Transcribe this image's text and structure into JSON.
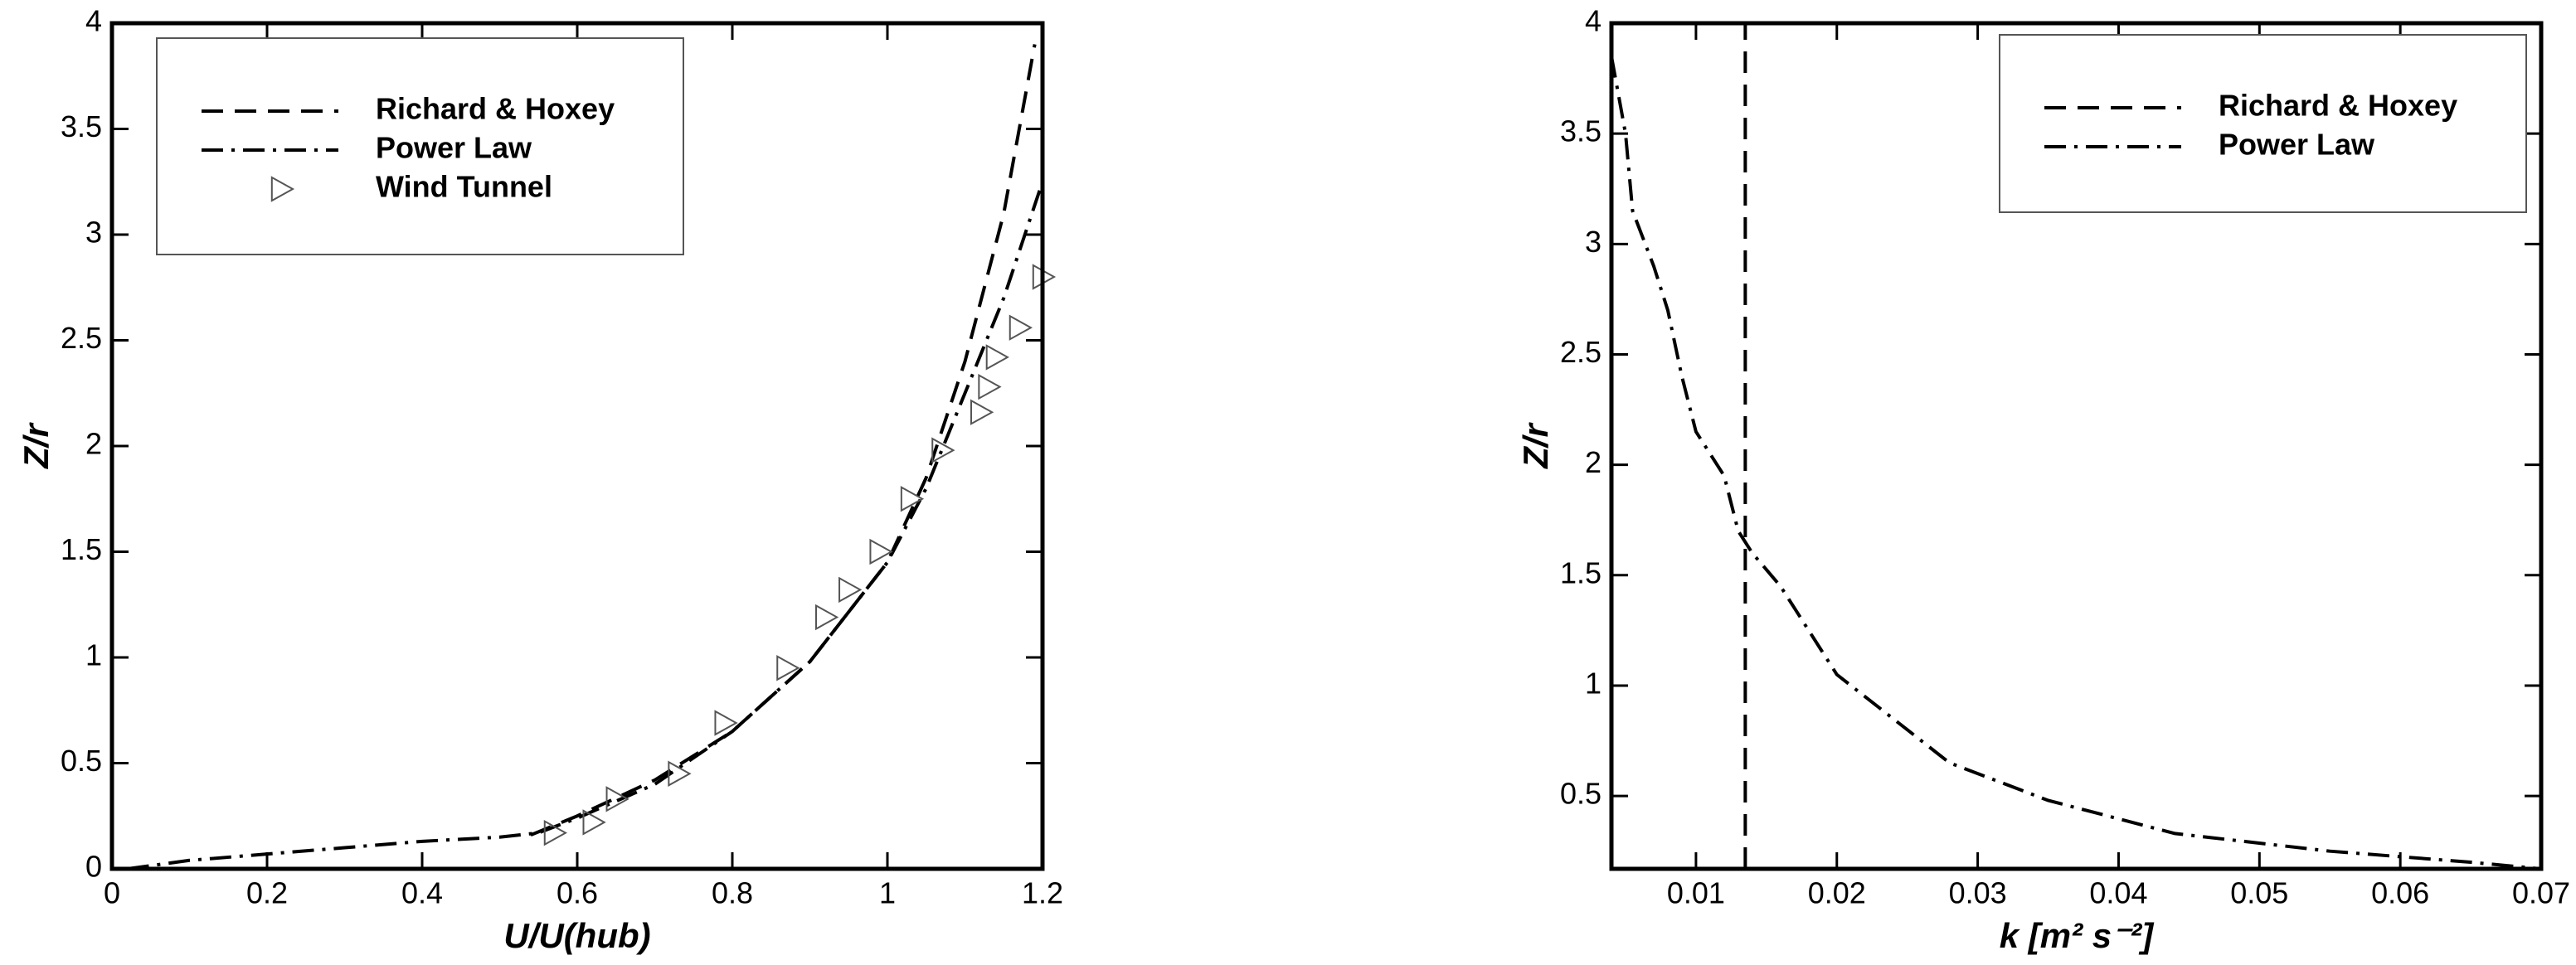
{
  "chart_data": [
    {
      "type": "line",
      "xlabel": "U/U(hub)",
      "ylabel": "Z/r",
      "xlim": [
        0,
        1.2
      ],
      "ylim": [
        0,
        4
      ],
      "xticks": [
        0,
        0.2,
        0.4,
        0.6,
        0.8,
        1,
        1.2
      ],
      "yticks": [
        0,
        0.5,
        1,
        1.5,
        2,
        2.5,
        3,
        3.5,
        4
      ],
      "legend": "upper left",
      "series": [
        {
          "name": "Richard & Hoxey",
          "style": "dashed",
          "color": "#000000",
          "x": [
            0.54,
            0.6,
            0.7,
            0.8,
            0.9,
            1.0,
            1.05,
            1.1,
            1.15,
            1.19
          ],
          "values": [
            0.16,
            0.25,
            0.42,
            0.65,
            0.98,
            1.45,
            1.85,
            2.4,
            3.1,
            3.9
          ]
        },
        {
          "name": "Power Law",
          "style": "dashdot",
          "color": "#000000",
          "x": [
            0.02,
            0.1,
            0.2,
            0.3,
            0.4,
            0.5,
            0.55,
            0.6,
            0.7,
            0.8,
            0.9,
            1.0,
            1.05,
            1.1,
            1.15,
            1.2
          ],
          "values": [
            0,
            0.04,
            0.07,
            0.1,
            0.13,
            0.15,
            0.17,
            0.24,
            0.4,
            0.65,
            0.98,
            1.45,
            1.8,
            2.25,
            2.7,
            3.25
          ]
        },
        {
          "name": "Wind Tunnel",
          "style": "markers",
          "color": "#555555",
          "x": [
            0.57,
            0.62,
            0.65,
            0.73,
            0.79,
            0.87,
            0.92,
            0.95,
            0.99,
            1.03,
            1.07,
            1.12,
            1.13,
            1.14,
            1.17,
            1.2
          ],
          "values": [
            0.17,
            0.22,
            0.33,
            0.45,
            0.69,
            0.95,
            1.19,
            1.32,
            1.5,
            1.75,
            1.98,
            2.16,
            2.28,
            2.42,
            2.56,
            2.8
          ]
        }
      ]
    },
    {
      "type": "line",
      "xlabel": "k [m² s⁻²]",
      "ylabel": "Z/r",
      "xlim": [
        0.004,
        0.07
      ],
      "ylim": [
        0.17,
        4
      ],
      "xticks": [
        0.01,
        0.02,
        0.03,
        0.04,
        0.05,
        0.06,
        0.07
      ],
      "yticks": [
        0.5,
        1,
        1.5,
        2,
        2.5,
        3,
        3.5,
        4
      ],
      "legend": "upper right",
      "series": [
        {
          "name": "Richard & Hoxey",
          "style": "dashed",
          "color": "#000000",
          "x": [
            0.0135,
            0.0135
          ],
          "values": [
            0.17,
            4
          ]
        },
        {
          "name": "Power Law",
          "style": "dashdot",
          "color": "#000000",
          "x": [
            0.004,
            0.005,
            0.0055,
            0.007,
            0.008,
            0.009,
            0.01,
            0.011,
            0.012,
            0.013,
            0.014,
            0.016,
            0.018,
            0.02,
            0.025,
            0.028,
            0.035,
            0.044,
            0.055,
            0.065,
            0.07
          ],
          "values": [
            3.85,
            3.5,
            3.15,
            2.9,
            2.7,
            2.4,
            2.15,
            2.05,
            1.95,
            1.7,
            1.6,
            1.45,
            1.25,
            1.05,
            0.8,
            0.65,
            0.48,
            0.33,
            0.25,
            0.2,
            0.17
          ]
        }
      ]
    }
  ]
}
